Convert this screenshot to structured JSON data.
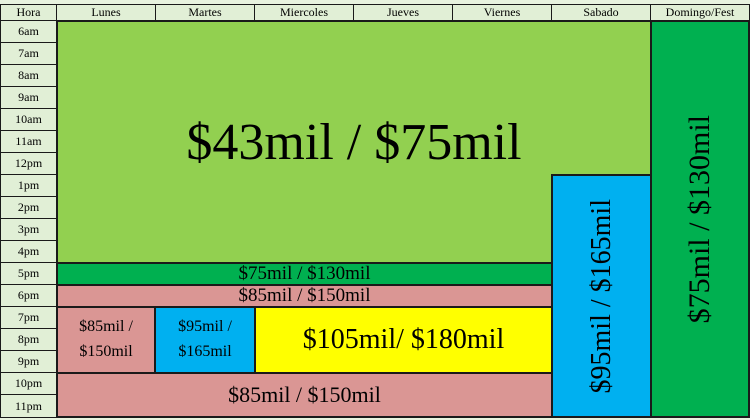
{
  "header": {
    "hour_label": "Hora",
    "days": [
      "Lunes",
      "Martes",
      "Miercoles",
      "Jueves",
      "Viernes",
      "Sabado",
      "Domingo/Fest"
    ]
  },
  "hours": [
    "6am",
    "7am",
    "8am",
    "9am",
    "10am",
    "11am",
    "12pm",
    "1pm",
    "2pm",
    "3pm",
    "4pm",
    "5pm",
    "6pm",
    "7pm",
    "8pm",
    "9pm",
    "10pm",
    "11pm"
  ],
  "blocks": {
    "weekday_day": "$43mil / $75mil",
    "weekday_5pm": "$75mil / $130mil",
    "weekday_6pm": "$85mil / $150mil",
    "weekday_mon_night": "$85mil / $150mil",
    "weekday_tue_night": "$95mil / $165mil",
    "weekday_wed_fri_night": "$105mil/ $180mil",
    "weekday_late": "$85mil / $150mil",
    "saturday": "$95mil / $165mil",
    "sunday": "$75mil / $130mil"
  },
  "colors": {
    "light_green": "#92d050",
    "dark_green": "#00b050",
    "cyan": "#00b0f0",
    "pink": "#da9694",
    "yellow": "#ffff00",
    "header_bg": "#e1efd6"
  }
}
